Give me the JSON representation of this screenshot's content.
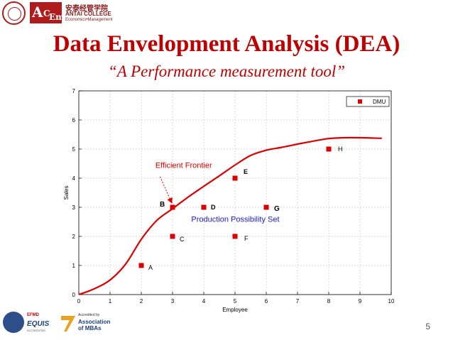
{
  "header": {
    "college_cn": "安泰经管学院",
    "college_en": "ANTAI COLLEGE",
    "college_sub": "Economics•Management"
  },
  "slide": {
    "title": "Data Envelopment Analysis (DEA)",
    "subtitle": "“A Performance measurement tool”",
    "page_number": "5"
  },
  "footer": {
    "equis_top": "EFMD",
    "equis_name": "EQUIS",
    "equis_note": "ACCREDITED",
    "amba_small": "Accredited by",
    "amba_line1": "Association",
    "amba_line2": "of MBAs"
  },
  "colors": {
    "title": "#c00000",
    "marker": "#dd0000",
    "curve": "#dd0000",
    "annotation_red": "#dd0000",
    "annotation_blue": "#1a1acc"
  },
  "chart_data": {
    "type": "scatter",
    "xlabel": "Employee",
    "ylabel": "Sales",
    "xlim": [
      0,
      10
    ],
    "ylim": [
      0,
      7
    ],
    "xticks": [
      0,
      1,
      2,
      3,
      4,
      5,
      6,
      7,
      8,
      9,
      10
    ],
    "yticks": [
      0,
      1,
      2,
      3,
      4,
      5,
      6,
      7
    ],
    "grid": true,
    "legend": {
      "position": "top-right",
      "entries": [
        "DMU"
      ]
    },
    "series": [
      {
        "name": "DMU",
        "points": [
          {
            "label": "A",
            "x": 2,
            "y": 1
          },
          {
            "label": "B",
            "x": 3,
            "y": 3
          },
          {
            "label": "C",
            "x": 3,
            "y": 2
          },
          {
            "label": "D",
            "x": 4,
            "y": 3
          },
          {
            "label": "E",
            "x": 5,
            "y": 4
          },
          {
            "label": "F",
            "x": 5,
            "y": 2
          },
          {
            "label": "G",
            "x": 6,
            "y": 3
          },
          {
            "label": "H",
            "x": 8,
            "y": 5
          }
        ]
      }
    ],
    "frontier_curve": [
      [
        0,
        0
      ],
      [
        0.5,
        0.2
      ],
      [
        1,
        0.5
      ],
      [
        1.5,
        1.05
      ],
      [
        2,
        1.9
      ],
      [
        2.5,
        2.55
      ],
      [
        3,
        2.95
      ],
      [
        3.5,
        3.35
      ],
      [
        4,
        3.72
      ],
      [
        4.5,
        4.08
      ],
      [
        5,
        4.45
      ],
      [
        5.5,
        4.78
      ],
      [
        6,
        4.96
      ],
      [
        6.5,
        5.06
      ],
      [
        7,
        5.17
      ],
      [
        7.5,
        5.27
      ],
      [
        8,
        5.36
      ],
      [
        8.5,
        5.39
      ],
      [
        9,
        5.39
      ],
      [
        9.7,
        5.37
      ]
    ],
    "annotations": [
      {
        "text": "Efficient Frontier",
        "x": 2.45,
        "y": 4.35,
        "color": "red",
        "arrow_to": [
          3,
          3
        ]
      },
      {
        "text": "Production Possibility Set",
        "x": 3.6,
        "y": 2.5,
        "color": "blue"
      }
    ]
  }
}
